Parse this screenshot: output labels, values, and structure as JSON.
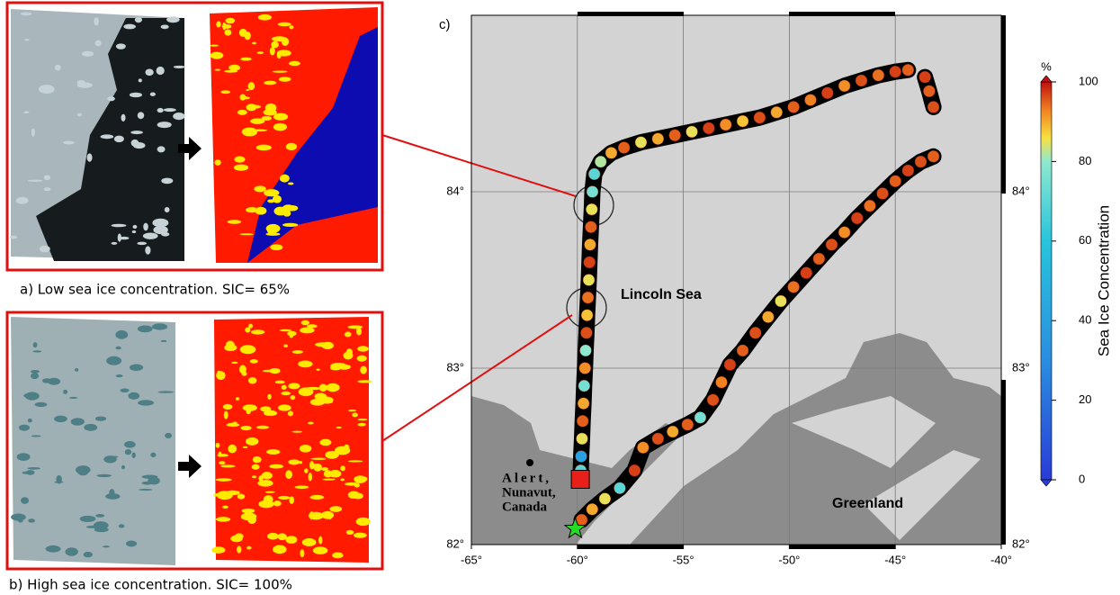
{
  "panels": [
    {
      "caption": "a) Low sea ice concentration. SIC= 65%"
    },
    {
      "caption": "b) High sea ice concentration. SIC= 100%"
    }
  ],
  "chart_data": {
    "type": "scatter",
    "panel_label": "c)",
    "xlim": [
      -65,
      -40
    ],
    "ylim": [
      82,
      85
    ],
    "xticks": [
      {
        "value": -65,
        "label": "-65°"
      },
      {
        "value": -60,
        "label": "-60°"
      },
      {
        "value": -55,
        "label": "-55°"
      },
      {
        "value": -50,
        "label": "-50°"
      },
      {
        "value": -45,
        "label": "-45°"
      },
      {
        "value": -40,
        "label": "-40°"
      }
    ],
    "yticks": [
      {
        "value": 82,
        "label": "82°"
      },
      {
        "value": 83,
        "label": "83°"
      },
      {
        "value": 84,
        "label": "84°"
      }
    ],
    "grid": true,
    "tracks": [
      {
        "x": [
          -59.84,
          -59.82,
          -59.78,
          -59.75,
          -59.71,
          -59.68,
          -59.64,
          -59.61,
          -59.57,
          -59.54,
          -59.5,
          -59.46,
          -59.43,
          -59.4,
          -59.36,
          -59.32,
          -59.29,
          -59.2,
          -58.9,
          -58.4,
          -57.8,
          -57.0,
          -56.2,
          -55.4,
          -54.6,
          -53.8,
          -53.0,
          -52.2,
          -51.4,
          -50.6,
          -49.8,
          -49.0,
          -48.2,
          -47.4,
          -46.6,
          -45.8,
          -45.0,
          -44.4
        ],
        "y": [
          82.42,
          82.5,
          82.6,
          82.7,
          82.8,
          82.9,
          83.0,
          83.1,
          83.2,
          83.3,
          83.4,
          83.5,
          83.6,
          83.7,
          83.8,
          83.9,
          84.0,
          84.1,
          84.17,
          84.22,
          84.25,
          84.28,
          84.3,
          84.32,
          84.34,
          84.36,
          84.38,
          84.4,
          84.42,
          84.45,
          84.48,
          84.52,
          84.56,
          84.6,
          84.63,
          84.66,
          84.68,
          84.69
        ],
        "values": [
          70,
          40,
          85,
          95,
          90,
          75,
          92,
          80,
          96,
          88,
          94,
          85,
          97,
          90,
          95,
          85,
          75,
          70,
          82,
          90,
          95,
          85,
          90,
          95,
          85,
          97,
          92,
          88,
          96,
          90,
          95,
          93,
          97,
          92,
          96,
          94,
          97,
          95
        ]
      },
      {
        "x": [
          -43.6,
          -43.4,
          -43.2
        ],
        "y": [
          84.65,
          84.57,
          84.48
        ],
        "values": [
          97,
          95,
          96
        ]
      },
      {
        "x": [
          -59.8,
          -59.3,
          -58.7,
          -58.0,
          -57.3,
          -56.9,
          -56.2,
          -55.5,
          -54.8,
          -54.2,
          -53.6,
          -53.2,
          -52.8,
          -52.2,
          -51.6,
          -51.0,
          -50.4,
          -49.8,
          -49.2,
          -48.6,
          -48.0,
          -47.4,
          -46.8,
          -46.2,
          -45.6,
          -45.0,
          -44.4,
          -43.8,
          -43.2
        ],
        "y": [
          82.14,
          82.2,
          82.26,
          82.32,
          82.42,
          82.55,
          82.6,
          82.64,
          82.68,
          82.72,
          82.82,
          82.92,
          83.02,
          83.1,
          83.2,
          83.29,
          83.38,
          83.46,
          83.54,
          83.62,
          83.7,
          83.77,
          83.85,
          83.92,
          83.99,
          84.06,
          84.12,
          84.17,
          84.2
        ],
        "values": [
          95,
          90,
          85,
          70,
          97,
          92,
          96,
          90,
          95,
          75,
          96,
          93,
          97,
          95,
          96,
          90,
          85,
          94,
          97,
          95,
          96,
          92,
          97,
          94,
          96,
          95,
          97,
          96,
          95
        ]
      }
    ],
    "start": {
      "x": -60.1,
      "y": 82.09
    },
    "end": {
      "x": -59.86,
      "y": 82.37
    },
    "sea_label": "Lincoln Sea",
    "land_label": "Greenland",
    "station_label": [
      "Alert,",
      "Nunavut,",
      "Canada"
    ],
    "colorbar": {
      "label": "Sea Ice Concentration",
      "unit": "%",
      "lim": [
        0,
        100
      ],
      "ticks": [
        0,
        20,
        40,
        60,
        80,
        100
      ]
    }
  }
}
